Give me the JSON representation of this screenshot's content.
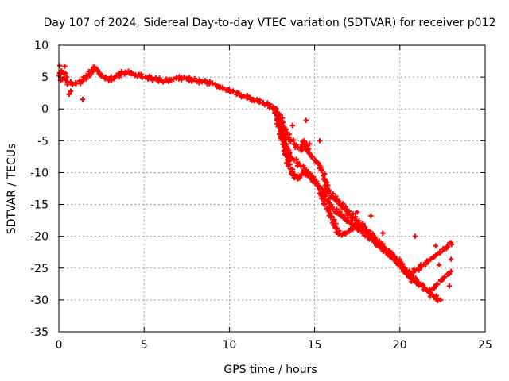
{
  "chart_data": {
    "type": "scatter",
    "title": "Day 107 of 2024, Sidereal Day-to-day VTEC variation (SDTVAR) for receiver p012",
    "xlabel": "GPS time / hours",
    "ylabel": "SDTVAR / TECUs",
    "xlim": [
      0,
      25
    ],
    "ylim": [
      -35,
      10
    ],
    "x_ticks": [
      0,
      5,
      10,
      15,
      20,
      25
    ],
    "x_tick_labels": [
      "0",
      "5",
      "10",
      "15",
      "20",
      "25"
    ],
    "y_ticks": [
      10,
      5,
      0,
      -5,
      -10,
      -15,
      -20,
      -25,
      -30,
      -35
    ],
    "y_tick_labels": [
      "10",
      "5",
      "0",
      "-5",
      "-10",
      "-15",
      "-20",
      "-25",
      "-30",
      "-35"
    ],
    "grid": true,
    "legend": "none",
    "marker": "plus",
    "color": "#ff0000",
    "series": [
      {
        "name": "main trace",
        "x": [
          0.0,
          0.15,
          0.3,
          0.5,
          0.8,
          1.0,
          1.3,
          1.6,
          1.9,
          2.1,
          2.4,
          2.7,
          3.0,
          3.3,
          3.6,
          3.9,
          4.2,
          4.5,
          4.8,
          5.1,
          5.4,
          5.7,
          6.0,
          6.3,
          6.6,
          6.9,
          7.2,
          7.5,
          7.8,
          8.1,
          8.4,
          8.7,
          9.0,
          9.3,
          9.6,
          9.9,
          10.2,
          10.5,
          10.8,
          11.1,
          11.4,
          11.7,
          12.0,
          12.3,
          12.6,
          12.8,
          13.0,
          13.2,
          13.4,
          13.6,
          13.8,
          14.0,
          14.2,
          14.4,
          14.6,
          14.8,
          15.0,
          15.2,
          15.4,
          15.6,
          15.8,
          16.0,
          16.2,
          16.4,
          16.6,
          16.8,
          17.0,
          17.2,
          17.4,
          17.6,
          17.8,
          18.0,
          18.2,
          18.4,
          18.6,
          18.8,
          19.0,
          19.2,
          19.4,
          19.6,
          19.8,
          20.0,
          20.2,
          20.4,
          20.6,
          20.8,
          21.0,
          21.2,
          21.4,
          21.6,
          21.8,
          22.0,
          22.2,
          22.4,
          22.6,
          22.8,
          23.0
        ],
        "y": [
          5.2,
          6.0,
          5.5,
          4.2,
          3.8,
          4.0,
          4.3,
          5.0,
          5.8,
          6.5,
          5.6,
          4.8,
          4.6,
          5.0,
          5.5,
          5.8,
          5.6,
          5.4,
          5.2,
          5.0,
          4.8,
          4.7,
          4.5,
          4.4,
          4.6,
          4.8,
          4.9,
          4.7,
          4.6,
          4.4,
          4.3,
          4.2,
          4.0,
          3.6,
          3.2,
          3.0,
          2.7,
          2.4,
          2.0,
          1.8,
          1.5,
          1.2,
          1.0,
          0.6,
          0.2,
          -1.0,
          -2.5,
          -4.5,
          -6.5,
          -7.5,
          -8.0,
          -8.5,
          -9.0,
          -9.5,
          -10.0,
          -10.5,
          -11.0,
          -12.0,
          -13.5,
          -15.0,
          -16.0,
          -17.0,
          -18.5,
          -19.5,
          -19.8,
          -19.5,
          -19.2,
          -18.8,
          -18.5,
          -18.0,
          -18.5,
          -19.0,
          -19.5,
          -20.0,
          -21.0,
          -21.5,
          -22.0,
          -22.5,
          -23.0,
          -23.5,
          -24.0,
          -24.5,
          -25.0,
          -25.5,
          -26.0,
          -26.5,
          -27.0,
          -27.5,
          -28.0,
          -28.5,
          -28.8,
          -28.0,
          -27.5,
          -27.0,
          -26.5,
          -26.0,
          -25.5
        ]
      },
      {
        "name": "upper branch",
        "x": [
          12.6,
          12.8,
          13.0,
          13.2,
          13.4,
          13.6,
          13.8,
          14.0,
          14.2,
          14.4,
          14.6,
          14.8,
          15.0,
          15.2,
          15.4,
          15.6,
          15.8,
          20.6,
          20.8,
          21.0,
          21.2,
          21.4,
          21.6,
          21.8,
          22.0,
          22.2,
          22.4,
          22.6,
          22.8,
          23.0
        ],
        "y": [
          0.0,
          -0.5,
          -1.5,
          -3.0,
          -4.0,
          -4.8,
          -5.5,
          -6.0,
          -6.5,
          -5.0,
          -6.5,
          -7.5,
          -8.0,
          -8.5,
          -9.5,
          -11.0,
          -13.0,
          -26.0,
          -25.5,
          -25.2,
          -24.8,
          -24.4,
          -24.0,
          -23.6,
          -23.2,
          -22.8,
          -22.4,
          -22.0,
          -21.6,
          -21.0
        ]
      },
      {
        "name": "lower branch",
        "x": [
          12.8,
          13.0,
          13.2,
          13.4,
          13.6,
          13.8,
          14.0,
          14.2,
          14.4,
          14.6,
          14.8,
          15.0,
          15.2,
          15.4,
          15.6,
          15.8,
          16.0,
          20.0,
          20.2,
          20.4,
          20.6,
          20.8,
          21.0,
          21.2,
          21.4,
          21.6,
          21.8,
          22.0,
          22.2,
          22.4
        ],
        "y": [
          -1.5,
          -3.5,
          -6.0,
          -8.0,
          -9.5,
          -10.5,
          -11.0,
          -10.5,
          -10.0,
          -10.5,
          -11.0,
          -11.5,
          -12.0,
          -12.5,
          -13.5,
          -14.5,
          -15.5,
          -24.0,
          -25.0,
          -26.0,
          -26.5,
          -27.0,
          -27.3,
          -27.6,
          -28.0,
          -28.5,
          -29.0,
          -29.5,
          -29.8,
          -30.0
        ]
      },
      {
        "name": "scattered points",
        "x": [
          0.05,
          0.1,
          0.6,
          0.7,
          1.4,
          0.2,
          0.35,
          14.5,
          13.7,
          14.7,
          15.3,
          16.9,
          17.5,
          18.3,
          19.0,
          20.9,
          22.1,
          22.3,
          22.9,
          23.0
        ],
        "y": [
          6.8,
          4.5,
          2.3,
          2.8,
          1.5,
          4.6,
          6.7,
          -1.8,
          -2.6,
          -5.5,
          -5.0,
          -16.5,
          -16.2,
          -16.8,
          -19.5,
          -20.0,
          -21.5,
          -24.5,
          -27.8,
          -23.6
        ]
      }
    ]
  }
}
